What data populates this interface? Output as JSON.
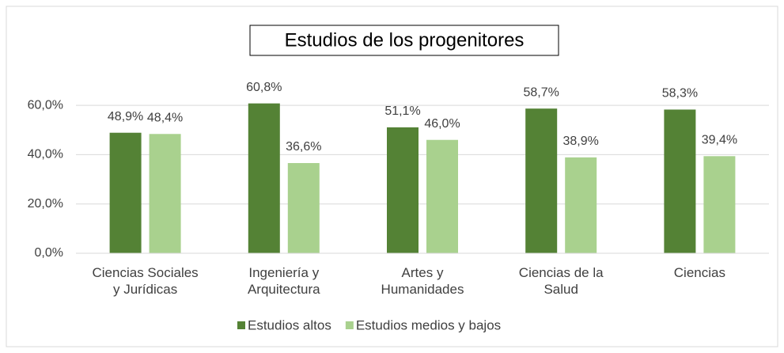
{
  "chart_data": {
    "type": "bar",
    "title": "Estudios de los progenitores",
    "categories": [
      "Ciencias Sociales\ny Jurídicas",
      "Ingeniería y\nArquitectura",
      "Artes y\nHumanidades",
      "Ciencias de la\nSalud",
      "Ciencias"
    ],
    "series": [
      {
        "name": "Estudios altos",
        "color": "#548235",
        "values": [
          48.9,
          60.8,
          51.1,
          58.7,
          58.3
        ],
        "value_labels": [
          "48,9%",
          "60,8%",
          "51,1%",
          "58,7%",
          "58,3%"
        ]
      },
      {
        "name": "Estudios medios y bajos",
        "color": "#a9d18e",
        "values": [
          48.4,
          36.6,
          46.0,
          38.9,
          39.4
        ],
        "value_labels": [
          "48,4%",
          "36,6%",
          "46,0%",
          "38,9%",
          "39,4%"
        ]
      }
    ],
    "ylim": [
      0,
      70
    ],
    "yticks": [
      {
        "value": 0,
        "label": "0,0%"
      },
      {
        "value": 20,
        "label": "20,0%"
      },
      {
        "value": 40,
        "label": "40,0%"
      },
      {
        "value": 60,
        "label": "60,0%"
      }
    ],
    "grid": true,
    "legend": "bottom"
  }
}
